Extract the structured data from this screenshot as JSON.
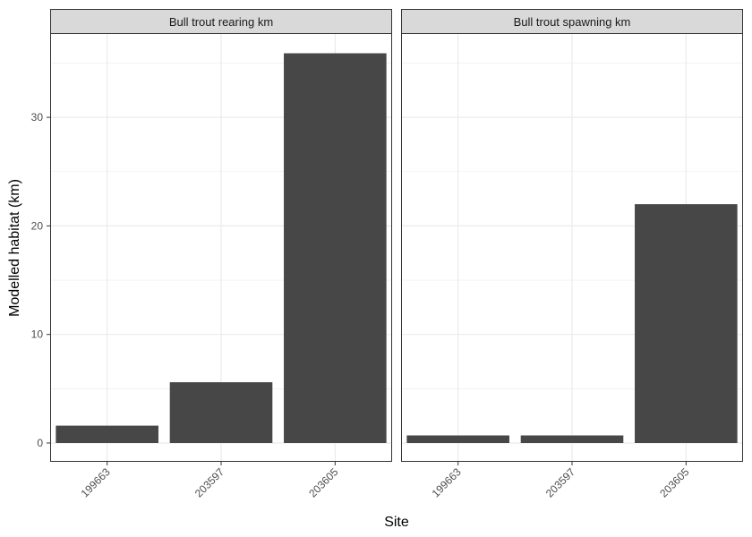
{
  "chart_data": {
    "type": "bar",
    "facets": [
      {
        "label": "Bull trout rearing km",
        "categories": [
          "199663",
          "203597",
          "203605"
        ],
        "values": [
          1.6,
          5.6,
          35.9
        ]
      },
      {
        "label": "Bull trout spawning km",
        "categories": [
          "199663",
          "203597",
          "203605"
        ],
        "values": [
          0.7,
          0.7,
          22.0
        ]
      }
    ],
    "xlabel": "Site",
    "ylabel": "Modelled habitat (km)",
    "ylim": [
      0,
      37.7
    ],
    "yticks": [
      0,
      10,
      20,
      30
    ],
    "grid": true,
    "bar_color": "#474747",
    "strip_fill": "#d9d9d9",
    "panel_border": "#333333",
    "grid_color": "#ebebeb"
  }
}
